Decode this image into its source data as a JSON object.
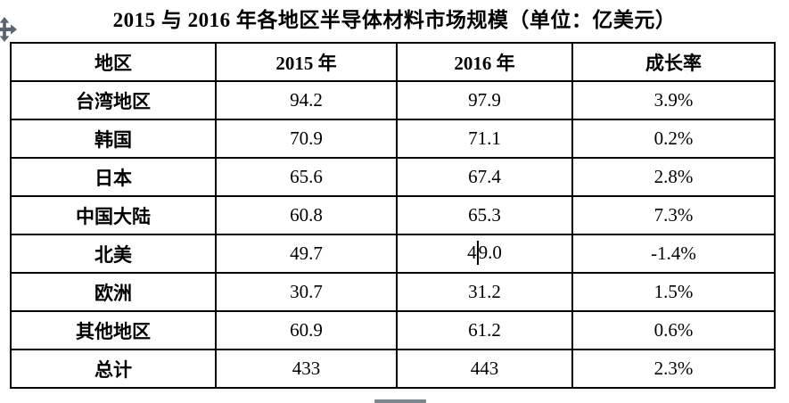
{
  "title": "2015 与 2016 年各地区半导体材料市场规模（单位：亿美元）",
  "table": {
    "headers": [
      "地区",
      "2015 年",
      "2016 年",
      "成长率"
    ],
    "rows": [
      {
        "region": "台湾地区",
        "y2015": "94.2",
        "y2016": "97.9",
        "growth": "3.9%"
      },
      {
        "region": "韩国",
        "y2015": "70.9",
        "y2016": "71.1",
        "growth": "0.2%"
      },
      {
        "region": "日本",
        "y2015": "65.6",
        "y2016": "67.4",
        "growth": "2.8%"
      },
      {
        "region": "中国大陆",
        "y2015": "60.8",
        "y2016": "65.3",
        "growth": "7.3%"
      },
      {
        "region": "北美",
        "y2015": "49.7",
        "y2016": "49.0",
        "growth": "-1.4%"
      },
      {
        "region": "欧洲",
        "y2015": "30.7",
        "y2016": "31.2",
        "growth": "1.5%"
      },
      {
        "region": "其他地区",
        "y2015": "60.9",
        "y2016": "61.2",
        "growth": "0.6%"
      },
      {
        "region": "总计",
        "y2015": "433",
        "y2016": "443",
        "growth": "2.3%"
      }
    ]
  },
  "text_cursor": {
    "row_index": 4,
    "column": "y2016",
    "text_before": "4",
    "text_after": "9.0"
  },
  "icons": {
    "move_handle": "table-move-handle-icon",
    "resize_bar": "table-resize-handle"
  },
  "colors": {
    "text": "#000000",
    "border": "#000000",
    "background": "#ffffff",
    "handle_gray": "#5b6570",
    "resize_bar_gray": "#7e868d"
  }
}
